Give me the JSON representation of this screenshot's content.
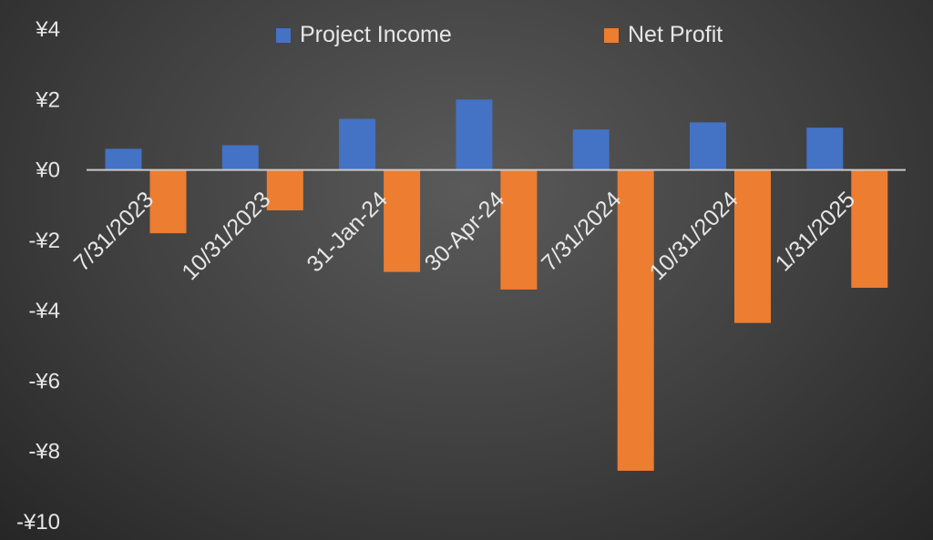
{
  "chart_data": {
    "type": "bar",
    "title": "",
    "xlabel": "",
    "ylabel": "",
    "categories": [
      "7/31/2023",
      "10/31/2023",
      "31-Jan-24",
      "30-Apr-24",
      "7/31/2024",
      "10/31/2024",
      "1/31/2025"
    ],
    "series": [
      {
        "name": "Project Income",
        "values": [
          0.6,
          0.7,
          1.45,
          2.0,
          1.15,
          1.35,
          1.2
        ]
      },
      {
        "name": "Net Profit",
        "values": [
          -1.8,
          -1.15,
          -2.9,
          -3.4,
          -8.55,
          -4.35,
          -3.35
        ]
      }
    ],
    "ylim": [
      -10,
      4
    ],
    "yticks": [
      4,
      2,
      0,
      -2,
      -4,
      -6,
      -8,
      -10
    ],
    "ytick_labels": [
      "¥4",
      "¥2",
      "¥0",
      "-¥2",
      "-¥4",
      "-¥6",
      "-¥8",
      "-¥10"
    ],
    "colors": {
      "Project Income": "#4472c4",
      "Net Profit": "#ed7d31",
      "axis": "#c8c8c8",
      "text": "#e6e6e6"
    },
    "legend": "top-center",
    "grid": false
  }
}
